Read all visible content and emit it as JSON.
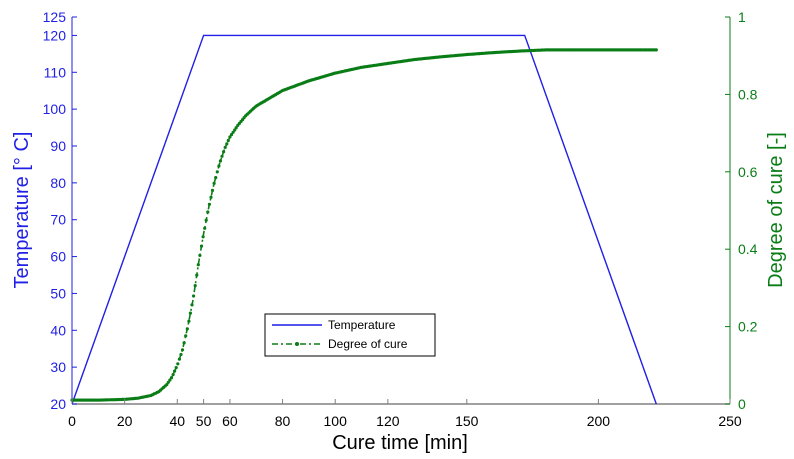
{
  "chart_data": {
    "type": "line",
    "xlabel": "Cure time [min]",
    "ylabel_left": "Temperature [° C]",
    "ylabel_right": "Degree of cure [-]",
    "x_ticks": [
      0,
      20,
      40,
      50,
      60,
      80,
      100,
      120,
      150,
      200,
      250
    ],
    "y_left_ticks": [
      20,
      30,
      40,
      50,
      60,
      70,
      80,
      90,
      100,
      110,
      120,
      125
    ],
    "y_right_ticks": [
      0,
      0.2,
      0.4,
      0.6,
      0.8,
      1
    ],
    "xlim": [
      0,
      250
    ],
    "ylim_left": [
      20,
      125
    ],
    "ylim_right": [
      0,
      1
    ],
    "grid": false,
    "legend_position": "center-left",
    "colors": {
      "temperature": "#1f1fe6",
      "cure": "#0a7d17",
      "axis_left": "#1f1fe6",
      "axis_right": "#0a7d17"
    },
    "series": [
      {
        "name": "Temperature",
        "axis": "left",
        "style": "solid",
        "x": [
          0,
          50,
          172,
          222
        ],
        "y": [
          20,
          120,
          120,
          20
        ]
      },
      {
        "name": "Degree of cure",
        "axis": "right",
        "style": "dash-dot-marker",
        "x": [
          0,
          10,
          20,
          25,
          30,
          33,
          36,
          38,
          40,
          42,
          44,
          46,
          48,
          50,
          52,
          54,
          56,
          58,
          60,
          63,
          66,
          70,
          75,
          80,
          90,
          100,
          110,
          120,
          130,
          140,
          150,
          160,
          170,
          180,
          190,
          200,
          210,
          222
        ],
        "y": [
          0.01,
          0.01,
          0.012,
          0.015,
          0.022,
          0.032,
          0.05,
          0.07,
          0.1,
          0.14,
          0.2,
          0.27,
          0.36,
          0.44,
          0.51,
          0.57,
          0.62,
          0.66,
          0.69,
          0.72,
          0.745,
          0.77,
          0.79,
          0.81,
          0.835,
          0.855,
          0.87,
          0.88,
          0.89,
          0.897,
          0.903,
          0.908,
          0.912,
          0.915,
          0.915,
          0.915,
          0.915,
          0.915
        ]
      }
    ]
  }
}
